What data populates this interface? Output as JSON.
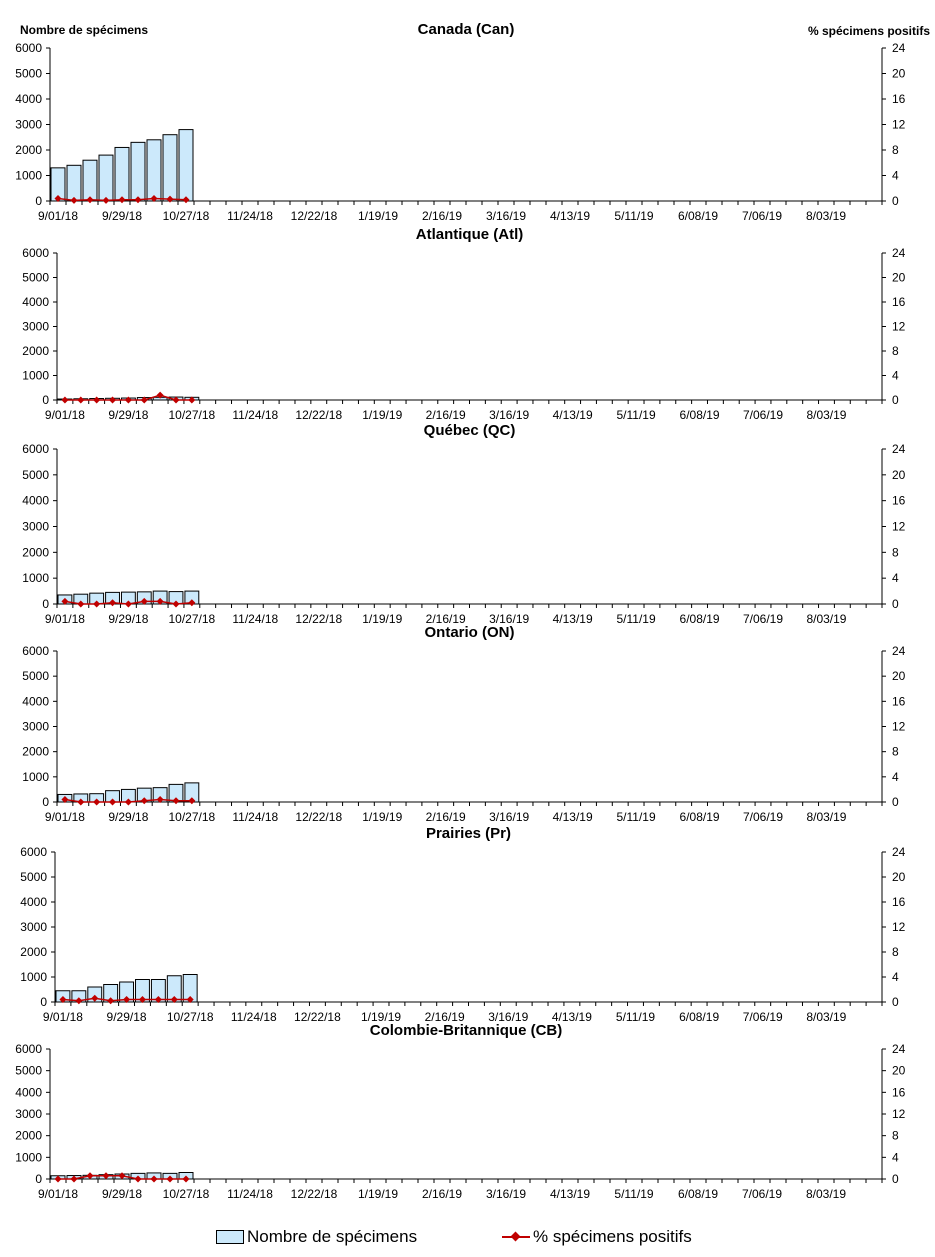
{
  "y_left_label": "Nombre de spécimens",
  "y_right_label": "% spécimens positifs",
  "legend": {
    "bars_label": "Nombre de spécimens",
    "line_label": "% spécimens positifs"
  },
  "colors": {
    "bar_fill": "#cce9fb",
    "bar_stroke": "#000000",
    "line": "#c00000"
  },
  "chart_data": [
    {
      "type": "bar",
      "title": "Canada (Can)",
      "x_tick_labels": [
        "9/01/18",
        "9/29/18",
        "10/27/18",
        "11/24/18",
        "12/22/18",
        "1/19/19",
        "2/16/19",
        "3/16/19",
        "4/13/19",
        "5/11/19",
        "6/08/19",
        "7/06/19",
        "8/03/19"
      ],
      "weeks_total": 52,
      "ylim_left": [
        0,
        6000
      ],
      "yticks_left": [
        0,
        1000,
        2000,
        3000,
        4000,
        5000,
        6000
      ],
      "ylim_right": [
        0,
        24
      ],
      "yticks_right": [
        0,
        4,
        8,
        12,
        16,
        20,
        24
      ],
      "series": [
        {
          "name": "Nombre de spécimens",
          "type": "bar",
          "values": [
            1300,
            1400,
            1600,
            1800,
            2100,
            2300,
            2400,
            2600,
            2800
          ]
        },
        {
          "name": "% spécimens positifs",
          "type": "line",
          "values": [
            0.4,
            0.1,
            0.2,
            0.1,
            0.2,
            0.2,
            0.4,
            0.3,
            0.2
          ]
        }
      ]
    },
    {
      "type": "bar",
      "title": "Atlantique (Atl)",
      "x_tick_labels": [
        "9/01/18",
        "9/29/18",
        "10/27/18",
        "11/24/18",
        "12/22/18",
        "1/19/19",
        "2/16/19",
        "3/16/19",
        "4/13/19",
        "5/11/19",
        "6/08/19",
        "7/06/19",
        "8/03/19"
      ],
      "weeks_total": 52,
      "ylim_left": [
        0,
        6000
      ],
      "yticks_left": [
        0,
        1000,
        2000,
        3000,
        4000,
        5000,
        6000
      ],
      "ylim_right": [
        0,
        24
      ],
      "yticks_right": [
        0,
        4,
        8,
        12,
        16,
        20,
        24
      ],
      "series": [
        {
          "name": "Nombre de spécimens",
          "type": "bar",
          "values": [
            40,
            50,
            60,
            70,
            80,
            100,
            110,
            120,
            110
          ]
        },
        {
          "name": "% spécimens positifs",
          "type": "line",
          "values": [
            0.0,
            0.0,
            0.0,
            0.0,
            0.0,
            0.0,
            0.8,
            0.0,
            0.0
          ]
        }
      ]
    },
    {
      "type": "bar",
      "title": "Québec (QC)",
      "x_tick_labels": [
        "9/01/18",
        "9/29/18",
        "10/27/18",
        "11/24/18",
        "12/22/18",
        "1/19/19",
        "2/16/19",
        "3/16/19",
        "4/13/19",
        "5/11/19",
        "6/08/19",
        "7/06/19",
        "8/03/19"
      ],
      "weeks_total": 52,
      "ylim_left": [
        0,
        6000
      ],
      "yticks_left": [
        0,
        1000,
        2000,
        3000,
        4000,
        5000,
        6000
      ],
      "ylim_right": [
        0,
        24
      ],
      "yticks_right": [
        0,
        4,
        8,
        12,
        16,
        20,
        24
      ],
      "series": [
        {
          "name": "Nombre de spécimens",
          "type": "bar",
          "values": [
            350,
            380,
            420,
            450,
            460,
            470,
            500,
            480,
            500
          ]
        },
        {
          "name": "% spécimens positifs",
          "type": "line",
          "values": [
            0.4,
            0.0,
            0.0,
            0.2,
            0.0,
            0.4,
            0.4,
            0.0,
            0.2
          ]
        }
      ]
    },
    {
      "type": "bar",
      "title": "Ontario (ON)",
      "x_tick_labels": [
        "9/01/18",
        "9/29/18",
        "10/27/18",
        "11/24/18",
        "12/22/18",
        "1/19/19",
        "2/16/19",
        "3/16/19",
        "4/13/19",
        "5/11/19",
        "6/08/19",
        "7/06/19",
        "8/03/19"
      ],
      "weeks_total": 52,
      "ylim_left": [
        0,
        6000
      ],
      "yticks_left": [
        0,
        1000,
        2000,
        3000,
        4000,
        5000,
        6000
      ],
      "ylim_right": [
        0,
        24
      ],
      "yticks_right": [
        0,
        4,
        8,
        12,
        16,
        20,
        24
      ],
      "series": [
        {
          "name": "Nombre de spécimens",
          "type": "bar",
          "values": [
            300,
            320,
            330,
            450,
            500,
            550,
            570,
            700,
            760
          ]
        },
        {
          "name": "% spécimens positifs",
          "type": "line",
          "values": [
            0.4,
            0.0,
            0.0,
            0.0,
            0.0,
            0.2,
            0.4,
            0.2,
            0.2
          ]
        }
      ]
    },
    {
      "type": "bar",
      "title": "Prairies (Pr)",
      "x_tick_labels": [
        "9/01/18",
        "9/29/18",
        "10/27/18",
        "11/24/18",
        "12/22/18",
        "1/19/19",
        "2/16/19",
        "3/16/19",
        "4/13/19",
        "5/11/19",
        "6/08/19",
        "7/06/19",
        "8/03/19"
      ],
      "weeks_total": 52,
      "ylim_left": [
        0,
        6000
      ],
      "yticks_left": [
        0,
        1000,
        2000,
        3000,
        4000,
        5000,
        6000
      ],
      "ylim_right": [
        0,
        24
      ],
      "yticks_right": [
        0,
        4,
        8,
        12,
        16,
        20,
        24
      ],
      "series": [
        {
          "name": "Nombre de spécimens",
          "type": "bar",
          "values": [
            450,
            450,
            600,
            700,
            800,
            900,
            900,
            1050,
            1100
          ]
        },
        {
          "name": "% spécimens positifs",
          "type": "line",
          "values": [
            0.4,
            0.2,
            0.6,
            0.2,
            0.4,
            0.4,
            0.4,
            0.4,
            0.4
          ]
        }
      ]
    },
    {
      "type": "bar",
      "title": "Colombie-Britannique (CB)",
      "x_tick_labels": [
        "9/01/18",
        "9/29/18",
        "10/27/18",
        "11/24/18",
        "12/22/18",
        "1/19/19",
        "2/16/19",
        "3/16/19",
        "4/13/19",
        "5/11/19",
        "6/08/19",
        "7/06/19",
        "8/03/19"
      ],
      "weeks_total": 52,
      "ylim_left": [
        0,
        6000
      ],
      "yticks_left": [
        0,
        1000,
        2000,
        3000,
        4000,
        5000,
        6000
      ],
      "ylim_right": [
        0,
        24
      ],
      "yticks_right": [
        0,
        4,
        8,
        12,
        16,
        20,
        24
      ],
      "series": [
        {
          "name": "Nombre de spécimens",
          "type": "bar",
          "values": [
            150,
            160,
            170,
            200,
            230,
            260,
            280,
            260,
            300
          ]
        },
        {
          "name": "% spécimens positifs",
          "type": "line",
          "values": [
            0.0,
            0.0,
            0.6,
            0.6,
            0.6,
            0.0,
            0.0,
            0.0,
            0.0
          ]
        }
      ]
    }
  ]
}
